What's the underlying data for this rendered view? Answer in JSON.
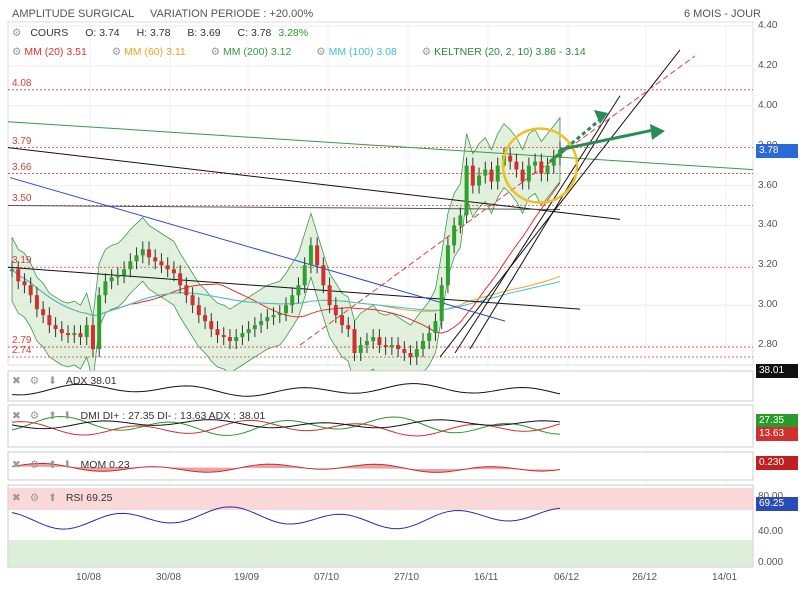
{
  "header": {
    "title": "AMPLITUDE SURGICAL",
    "variation": "VARIATION PERIODE : +20.00%",
    "period": "6 MOIS - JOUR"
  },
  "quote": {
    "cours_label": "COURS",
    "open": "O: 3.74",
    "high": "H: 3.78",
    "bid": "B: 3.69",
    "close": "C: 3.78",
    "change": "3.28%"
  },
  "indicators": [
    {
      "label": "MM (20)",
      "value": "3.51",
      "color": "#e0302a"
    },
    {
      "label": "MM (60)",
      "value": "3.11",
      "color": "#f0a020"
    },
    {
      "label": "MM (200)",
      "value": "3.12",
      "color": "#3a9a4a"
    },
    {
      "label": "MM (100)",
      "value": "3.08",
      "color": "#40c0d8"
    },
    {
      "label": "KELTNER (20, 2, 10)",
      "value": "3.86 - 3.14",
      "color": "#2a8a3a"
    }
  ],
  "levels": [
    {
      "label": "4.08",
      "value": 4.08
    },
    {
      "label": "3.79",
      "value": 3.79
    },
    {
      "label": "3.66",
      "value": 3.66
    },
    {
      "label": "3.50",
      "value": 3.5
    },
    {
      "label": "3.19",
      "value": 3.19
    },
    {
      "label": "2.79",
      "value": 2.79
    },
    {
      "label": "2.74",
      "value": 2.74
    }
  ],
  "panels": {
    "adx": {
      "label": "ADX",
      "value": "38.01",
      "badge": "38.01"
    },
    "dmi": {
      "label": "DMI DI+ : 27.35 DI- : 13.63 ADX : 38.01",
      "badge_plus": "27.35",
      "badge_minus": "13.63"
    },
    "mom": {
      "label": "MOM",
      "value": "0.23",
      "badge": "0.230"
    },
    "rsi": {
      "label": "RSI",
      "value": "69.25",
      "badge": "69.25",
      "ticks": [
        "80.00",
        "40.00",
        "0.000"
      ]
    }
  },
  "price_badge": "3.78",
  "colors": {
    "up": "#2ea02e",
    "down": "#d03030",
    "accent_circle": "#f0c020",
    "arrow": "#2a8a5a"
  },
  "chart_data": {
    "type": "candlestick",
    "y_ticks": [
      "4.40",
      "4.20",
      "4.00",
      "3.80",
      "3.60",
      "3.40",
      "3.20",
      "3.00",
      "2.80"
    ],
    "ylim": [
      2.7,
      4.42
    ],
    "x_ticks": [
      "10/08",
      "30/08",
      "19/09",
      "07/10",
      "27/10",
      "16/11",
      "06/12",
      "26/12",
      "14/01"
    ],
    "close": [
      3.18,
      3.12,
      3.1,
      3.05,
      2.98,
      2.95,
      2.9,
      2.88,
      2.86,
      2.85,
      2.86,
      2.84,
      2.9,
      2.78,
      3.05,
      3.12,
      3.14,
      3.15,
      3.18,
      3.22,
      3.25,
      3.28,
      3.24,
      3.22,
      3.2,
      3.18,
      3.16,
      3.1,
      3.05,
      3.0,
      2.95,
      2.92,
      2.88,
      2.85,
      2.84,
      2.82,
      2.84,
      2.86,
      2.88,
      2.9,
      2.92,
      2.94,
      2.95,
      2.96,
      3.0,
      3.05,
      3.1,
      3.2,
      3.3,
      3.2,
      3.1,
      3.0,
      2.95,
      2.9,
      2.88,
      2.76,
      2.8,
      2.82,
      2.84,
      2.8,
      2.79,
      2.8,
      2.78,
      2.76,
      2.74,
      2.78,
      2.82,
      2.86,
      2.92,
      3.1,
      3.3,
      3.4,
      3.45,
      3.7,
      3.6,
      3.65,
      3.68,
      3.62,
      3.7,
      3.75,
      3.72,
      3.68,
      3.62,
      3.7,
      3.72,
      3.66,
      3.7,
      3.74,
      3.78
    ]
  }
}
